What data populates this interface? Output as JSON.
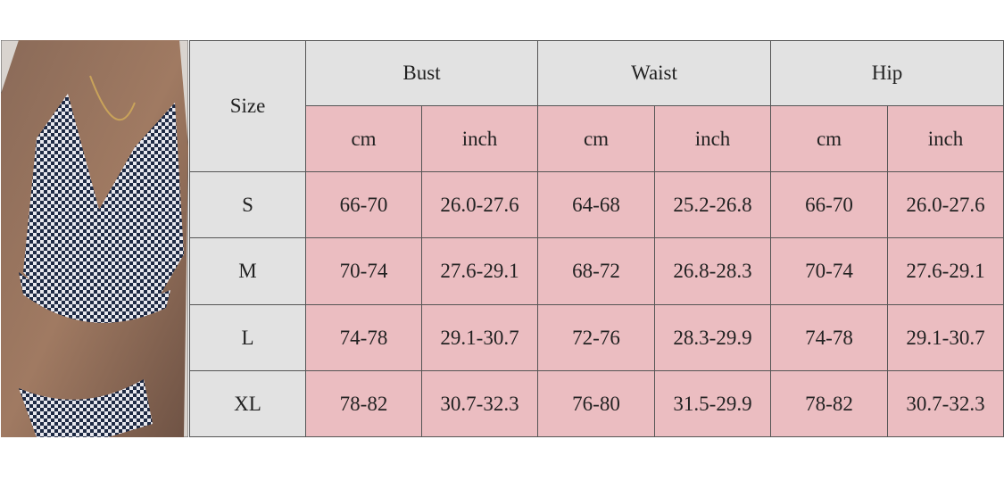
{
  "table": {
    "size_header": "Size",
    "groups": [
      "Bust",
      "Waist",
      "Hip"
    ],
    "units": [
      "cm",
      "inch",
      "cm",
      "inch",
      "cm",
      "inch"
    ],
    "rows": [
      [
        "S",
        "66-70",
        "26.0-27.6",
        "64-68",
        "25.2-26.8",
        "66-70",
        "26.0-27.6"
      ],
      [
        "M",
        "70-74",
        "27.6-29.1",
        "68-72",
        "26.8-28.3",
        "70-74",
        "27.6-29.1"
      ],
      [
        "L",
        "74-78",
        "29.1-30.7",
        "72-76",
        "28.3-29.9",
        "74-78",
        "29.1-30.7"
      ],
      [
        "XL",
        "78-82",
        "30.7-32.3",
        "76-80",
        "31.5-29.9",
        "78-82",
        "30.7-32.3"
      ]
    ]
  }
}
